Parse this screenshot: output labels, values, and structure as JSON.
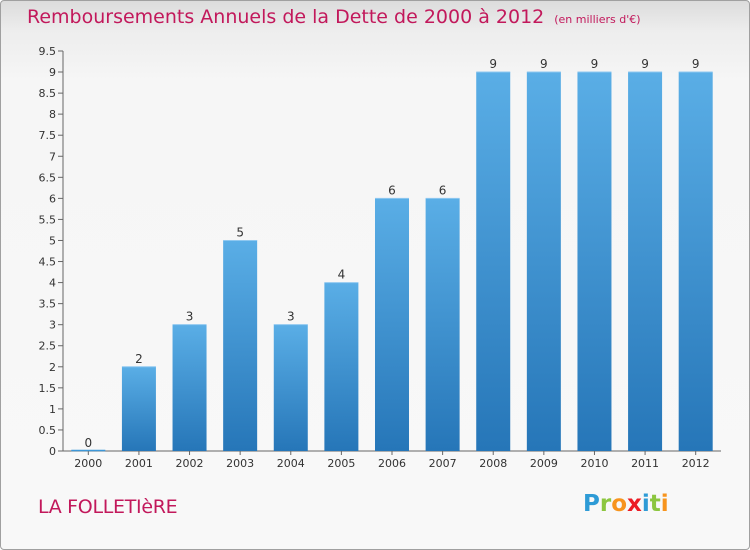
{
  "header": {
    "title": "Remboursements Annuels de la Dette de 2000 à 2012",
    "unit": "(en milliers d'€)"
  },
  "footer": {
    "commune": "LA FOLLETIèRE",
    "logo_letters": [
      {
        "char": "P",
        "color": "#2e9bd6"
      },
      {
        "char": "r",
        "color": "#8cc63f"
      },
      {
        "char": "o",
        "color": "#f7941d"
      },
      {
        "char": "x",
        "color": "#ec1c24"
      },
      {
        "char": "i",
        "color": "#2e9bd6"
      },
      {
        "char": "t",
        "color": "#8cc63f"
      },
      {
        "char": "i",
        "color": "#f7941d"
      }
    ]
  },
  "chart_data": {
    "type": "bar",
    "categories": [
      "2000",
      "2001",
      "2002",
      "2003",
      "2004",
      "2005",
      "2006",
      "2007",
      "2008",
      "2009",
      "2010",
      "2011",
      "2012"
    ],
    "values": [
      0,
      2,
      3,
      5,
      3,
      4,
      6,
      6,
      9,
      9,
      9,
      9,
      9
    ],
    "y_ticks": [
      "0",
      "0.5",
      "1",
      "1.5",
      "2",
      "2.5",
      "3",
      "3.5",
      "4",
      "4.5",
      "5",
      "5.5",
      "6",
      "6.5",
      "7",
      "7.5",
      "8",
      "8.5",
      "9",
      "9.5"
    ],
    "ylim": [
      0,
      9.5
    ],
    "grid": false,
    "bar_color": "#3d97d8",
    "title_color": "#c2185b"
  }
}
